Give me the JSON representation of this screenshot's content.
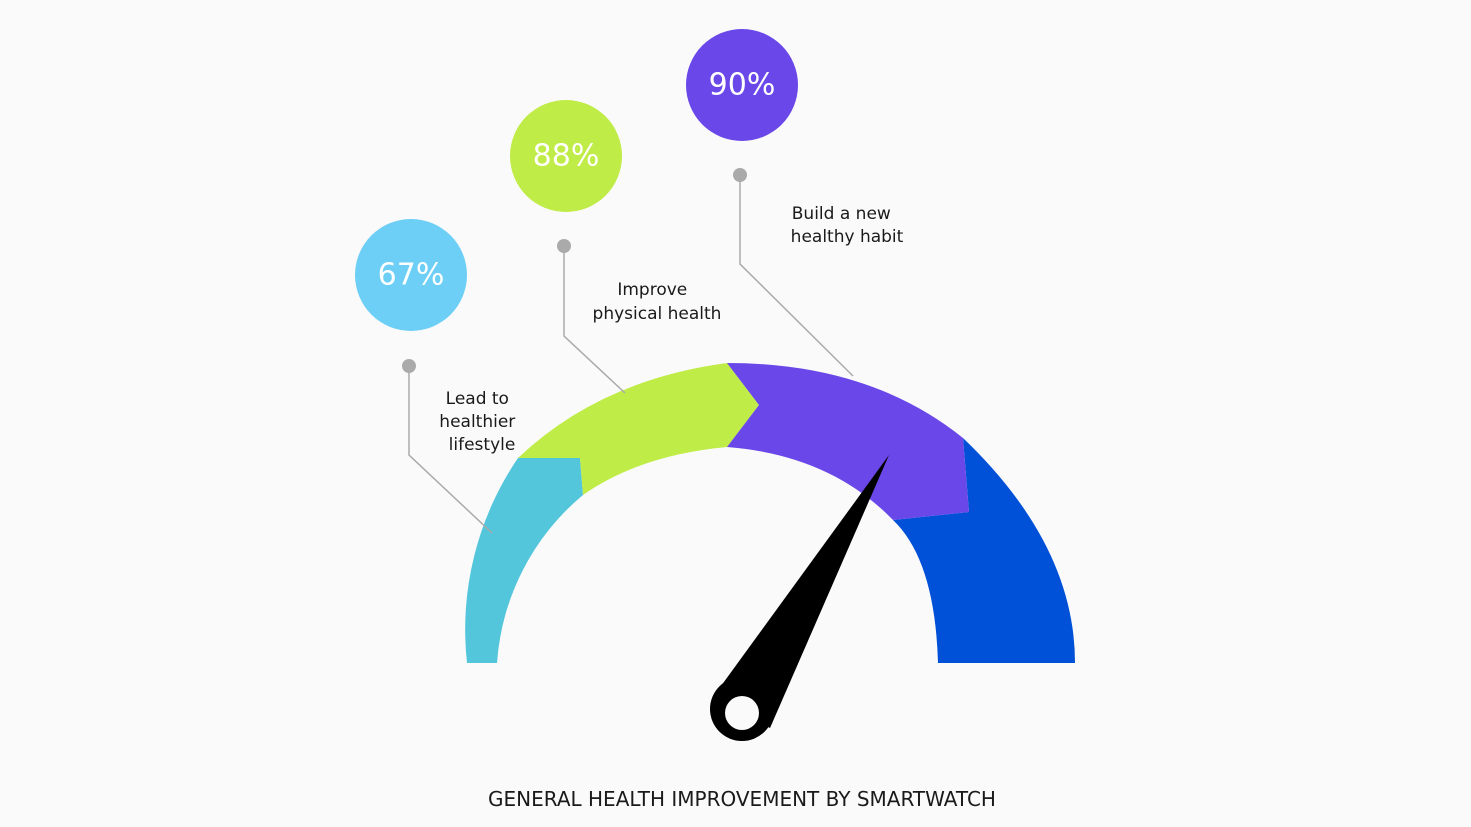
{
  "title": "GENERAL HEALTH IMPROVEMENT BY SMARTWATCH",
  "colors": {
    "background": "#fafafa",
    "segment_1": "#53c6dc",
    "segment_2": "#bfec46",
    "segment_3": "#6a47e8",
    "segment_4": "#0050d8",
    "bubble_1": "#6dcff6",
    "bubble_2": "#bfec46",
    "bubble_3": "#6a47e8",
    "needle": "#000000",
    "leader_line": "#aaaaaa"
  },
  "stats": [
    {
      "value": "67%",
      "label_lines": [
        "Lead to",
        "healthier",
        "lifestyle"
      ]
    },
    {
      "value": "88%",
      "label_lines": [
        "Improve",
        "physical health"
      ]
    },
    {
      "value": "90%",
      "label_lines": [
        "Build a new",
        "healthy habit"
      ]
    }
  ]
}
